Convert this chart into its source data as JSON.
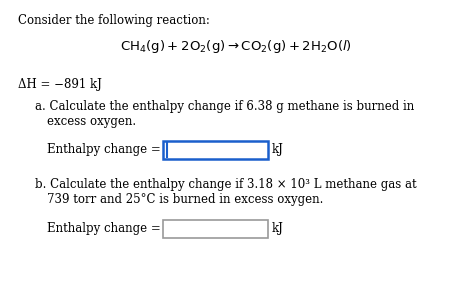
{
  "background_color": "#ffffff",
  "title_text": "Consider the following reaction:",
  "delta_h": "ΔH = −891 kJ",
  "enthalpy_label": "Enthalpy change = ",
  "kj_label": "kJ",
  "box_a_color": "#1a5fcc",
  "box_b_color": "#999999",
  "font_size_title": 8.5,
  "font_size_reaction": 9.5,
  "font_size_delta": 8.5,
  "font_size_parts": 8.5,
  "font_size_enthalpy": 8.5
}
